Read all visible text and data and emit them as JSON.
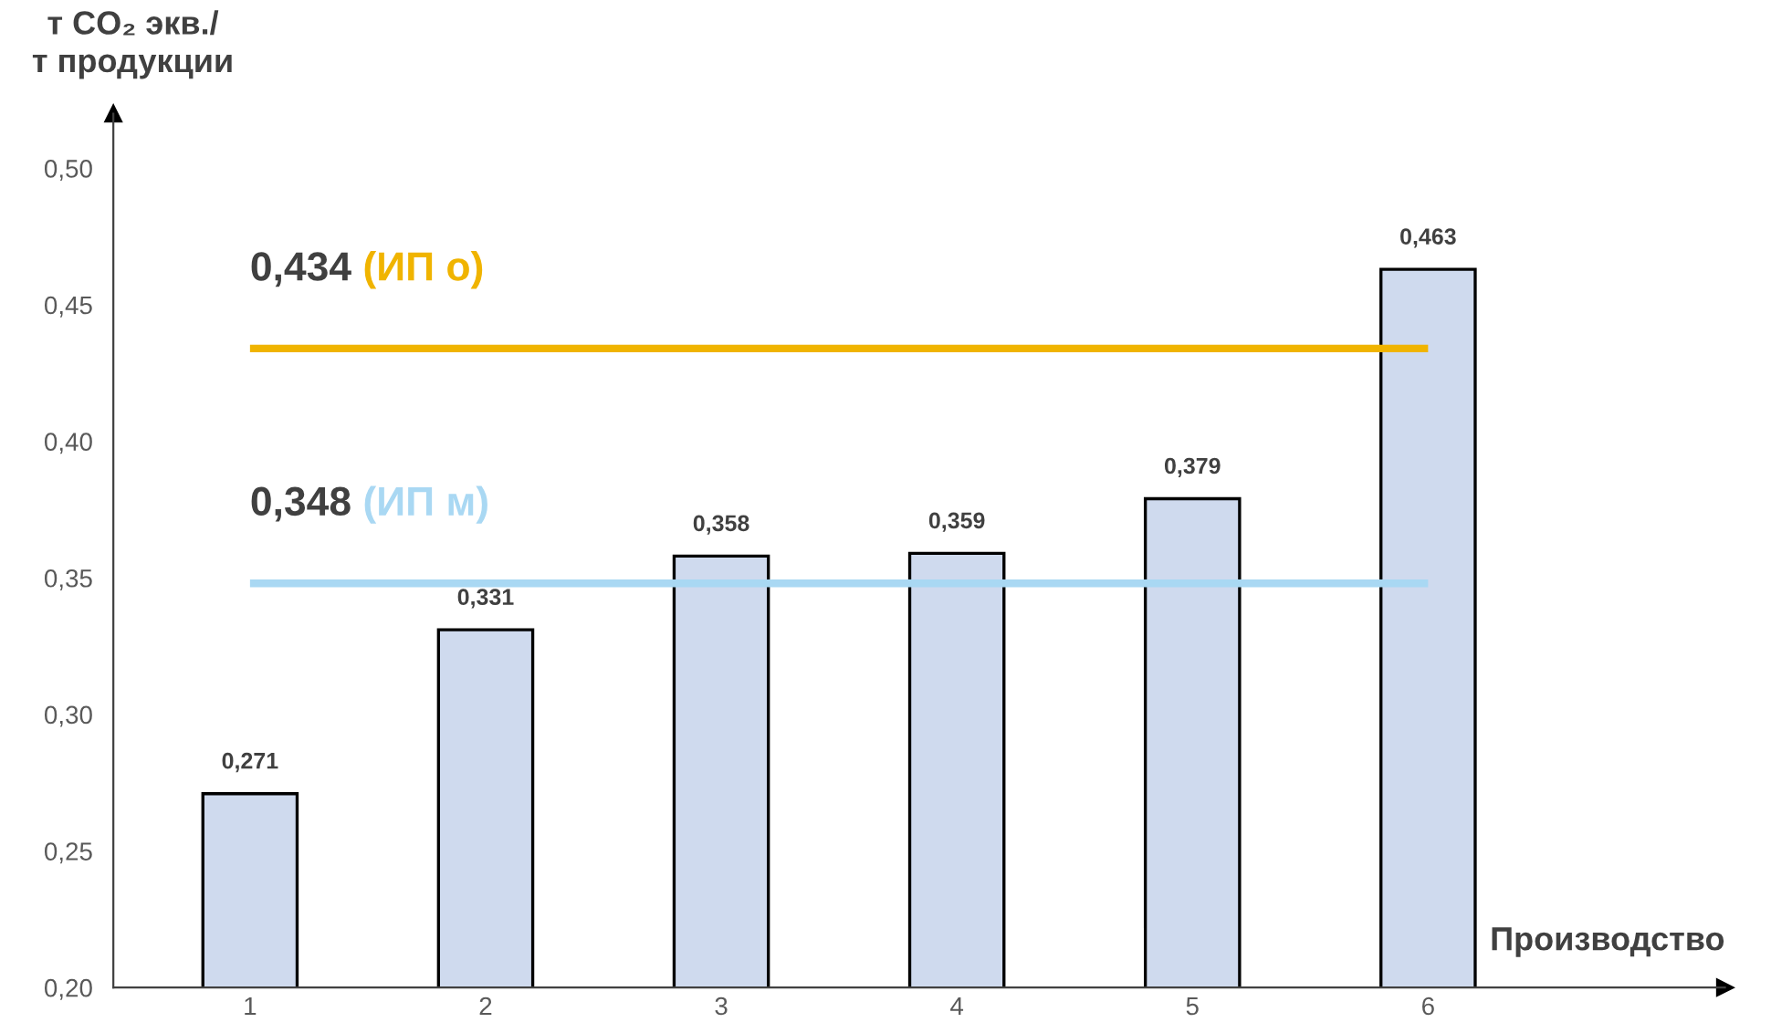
{
  "chart_data": {
    "type": "bar",
    "ylabel": "т CO₂ экв./\nт продукции",
    "xlabel": "Производство",
    "categories": [
      "1",
      "2",
      "3",
      "4",
      "5",
      "6"
    ],
    "values": [
      0.271,
      0.331,
      0.358,
      0.359,
      0.379,
      0.463
    ],
    "value_labels": [
      "0,271",
      "0,331",
      "0,358",
      "0,359",
      "0,379",
      "0,463"
    ],
    "color": "#cfdaee",
    "ylim": [
      0.2,
      0.52
    ],
    "yticks": [
      {
        "value": 0.2,
        "label": "0,20"
      },
      {
        "value": 0.25,
        "label": "0,25"
      },
      {
        "value": 0.3,
        "label": "0,30"
      },
      {
        "value": 0.35,
        "label": "0,35"
      },
      {
        "value": 0.4,
        "label": "0,40"
      },
      {
        "value": 0.45,
        "label": "0,45"
      },
      {
        "value": 0.5,
        "label": "0,50"
      }
    ],
    "ref_lines": [
      {
        "axis": "y",
        "value": 0.434,
        "label": "0,434 (ИП о)",
        "color": "#f0b400"
      },
      {
        "axis": "y",
        "value": 0.348,
        "label": "0,348 (ИП м)",
        "color": "#a9d8f3"
      }
    ],
    "grid": false,
    "legend": false
  }
}
